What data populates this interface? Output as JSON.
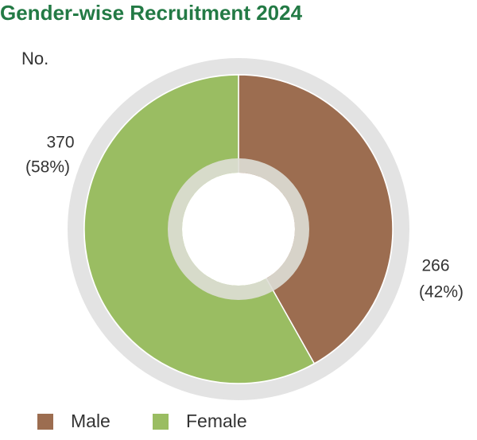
{
  "chart_data": {
    "type": "donut",
    "title": "Gender-wise Recruitment 2024",
    "unit_label": "No.",
    "categories": [
      "Male",
      "Female"
    ],
    "values": [
      266,
      370
    ],
    "shares": [
      42,
      58
    ],
    "share_labels": [
      "(42%)",
      "(58%)"
    ],
    "colors": [
      "#9c6d50",
      "#9abd62"
    ],
    "legend": "bottom"
  }
}
